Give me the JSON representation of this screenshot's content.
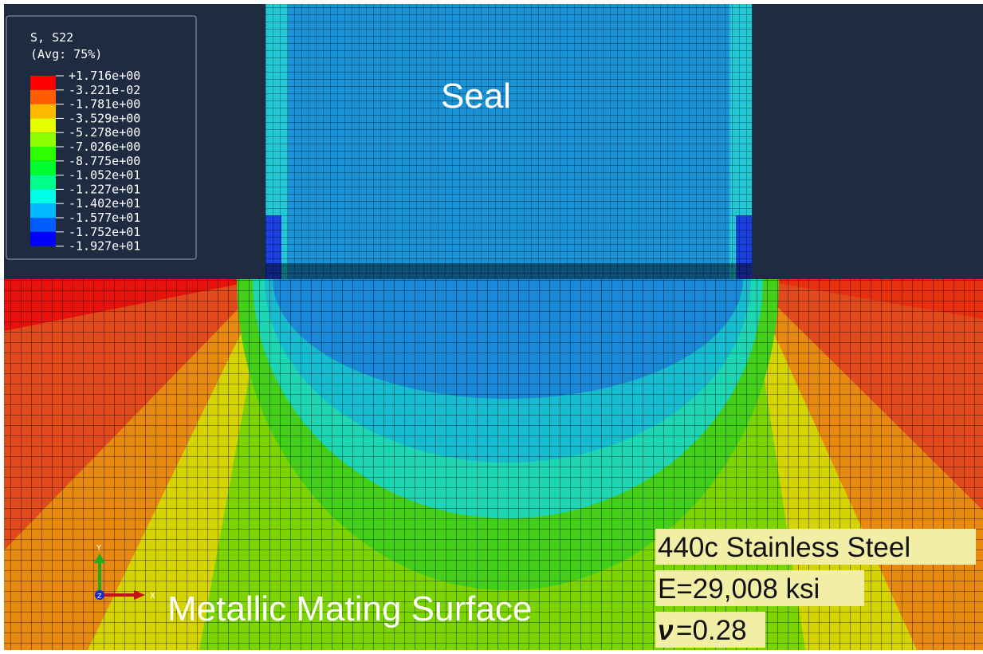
{
  "legend": {
    "title": "S, S22",
    "subtitle": "(Avg: 75%)",
    "levels": [
      "+1.716e+00",
      "-3.221e-02",
      "-1.781e+00",
      "-3.529e+00",
      "-5.278e+00",
      "-7.026e+00",
      "-8.775e+00",
      "-1.052e+01",
      "-1.227e+01",
      "-1.402e+01",
      "-1.577e+01",
      "-1.752e+01",
      "-1.927e+01"
    ],
    "colors": [
      "#ff0000",
      "#ff5d00",
      "#ffb900",
      "#e3ff00",
      "#8cff00",
      "#2eff00",
      "#00ff2e",
      "#00ff8b",
      "#00ffe8",
      "#00b9ff",
      "#005dff",
      "#0000ff"
    ]
  },
  "labels": {
    "seal": "Seal",
    "surface": "Metallic Mating Surface"
  },
  "triad": {
    "y": "Y",
    "x": "X",
    "z": "Z"
  },
  "material": {
    "name": "440c Stainless Steel",
    "modulus": "E=29,008 ksi",
    "poisson_symbol": "ν",
    "poisson_value": "=0.28"
  }
}
